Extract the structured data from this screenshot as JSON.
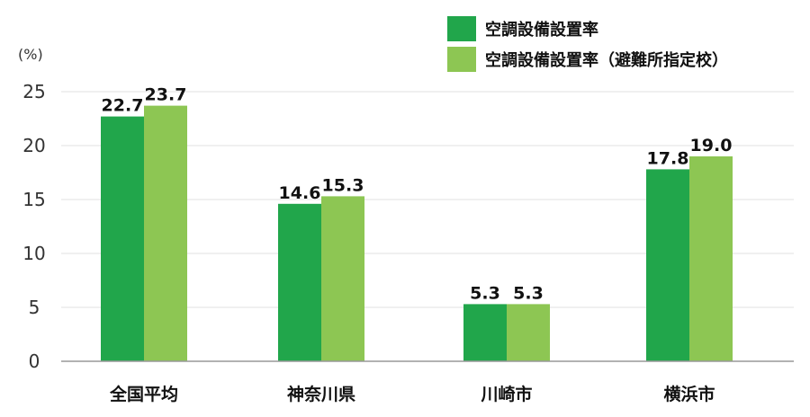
{
  "chart_data": {
    "type": "bar",
    "unit": "(%)",
    "categories": [
      "全国平均",
      "神奈川県",
      "川崎市",
      "横浜市"
    ],
    "series": [
      {
        "name": "空調設備設置率",
        "values": [
          22.7,
          14.6,
          5.3,
          17.8
        ],
        "color": "#21a64b"
      },
      {
        "name": "空調設備設置率（避難所指定校）",
        "values": [
          23.7,
          15.3,
          5.3,
          19.0
        ],
        "color": "#8dc653"
      }
    ],
    "ylim": [
      0,
      25
    ],
    "yticks": [
      0,
      5,
      10,
      15,
      20,
      25
    ],
    "grid": true,
    "legend": "top-right"
  }
}
